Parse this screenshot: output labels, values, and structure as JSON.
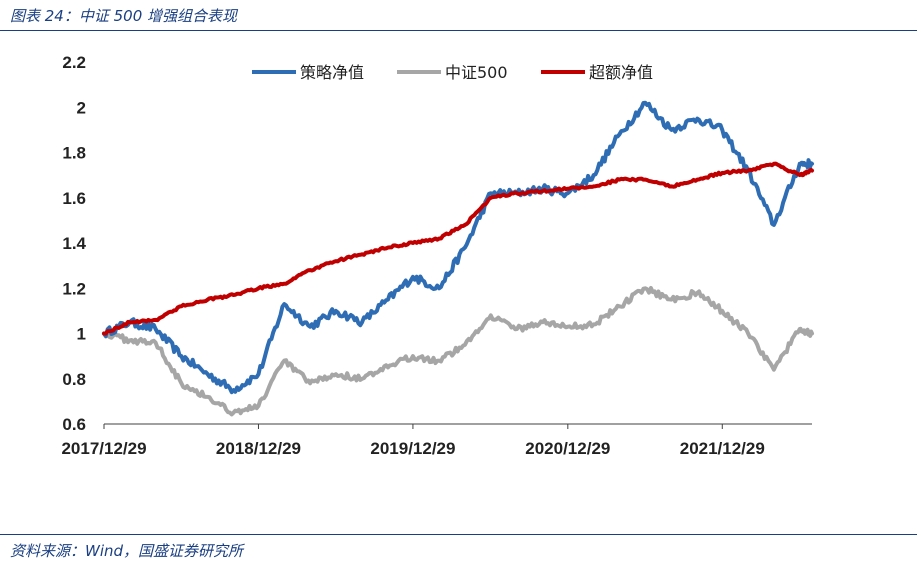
{
  "figure": {
    "title": "图表 24：中证 500 增强组合表现",
    "source": "资料来源：Wind，国盛证券研究所"
  },
  "colors": {
    "strategy": "#2e6db4",
    "index": "#a6a6a6",
    "excess": "#c00000",
    "frame": "#1a3f82"
  },
  "chart_data": {
    "type": "line",
    "title": "",
    "xlabel": "",
    "ylabel": "",
    "ylim": [
      0.6,
      2.2
    ],
    "yticks": [
      "0.6",
      "0.8",
      "1",
      "1.2",
      "1.4",
      "1.6",
      "1.8",
      "2",
      "2.2"
    ],
    "xtick_labels": [
      "2017/12/29",
      "2018/12/29",
      "2019/12/29",
      "2020/12/29",
      "2021/12/29"
    ],
    "xrange": [
      "2017/12/29",
      "2022/07/29"
    ],
    "grid": false,
    "legend_position": "top",
    "x": [
      "2017/12/29",
      "2018/02/28",
      "2018/04/30",
      "2018/06/30",
      "2018/08/31",
      "2018/10/31",
      "2018/12/29",
      "2019/02/28",
      "2019/04/30",
      "2019/06/30",
      "2019/08/31",
      "2019/10/31",
      "2019/12/29",
      "2020/02/29",
      "2020/04/30",
      "2020/06/30",
      "2020/08/31",
      "2020/10/31",
      "2020/12/29",
      "2021/02/28",
      "2021/04/30",
      "2021/06/30",
      "2021/08/31",
      "2021/10/31",
      "2021/12/29",
      "2022/02/28",
      "2022/04/30",
      "2022/06/30",
      "2022/07/29"
    ],
    "series": [
      {
        "name": "策略净值",
        "values": [
          1.0,
          1.05,
          1.02,
          0.9,
          0.82,
          0.75,
          0.82,
          1.13,
          1.03,
          1.1,
          1.05,
          1.15,
          1.25,
          1.2,
          1.38,
          1.62,
          1.62,
          1.64,
          1.62,
          1.7,
          1.88,
          2.02,
          1.9,
          1.95,
          1.9,
          1.72,
          1.48,
          1.75,
          1.75
        ]
      },
      {
        "name": "中证500",
        "values": [
          1.0,
          0.97,
          0.96,
          0.78,
          0.72,
          0.65,
          0.68,
          0.88,
          0.78,
          0.82,
          0.8,
          0.85,
          0.9,
          0.88,
          0.95,
          1.08,
          1.02,
          1.05,
          1.03,
          1.04,
          1.12,
          1.2,
          1.15,
          1.18,
          1.1,
          1.0,
          0.84,
          1.02,
          1.0
        ]
      },
      {
        "name": "超额净值",
        "values": [
          1.0,
          1.05,
          1.06,
          1.12,
          1.15,
          1.17,
          1.2,
          1.22,
          1.28,
          1.32,
          1.35,
          1.38,
          1.4,
          1.42,
          1.48,
          1.6,
          1.62,
          1.63,
          1.64,
          1.65,
          1.68,
          1.68,
          1.65,
          1.68,
          1.71,
          1.72,
          1.75,
          1.7,
          1.72
        ]
      }
    ]
  }
}
